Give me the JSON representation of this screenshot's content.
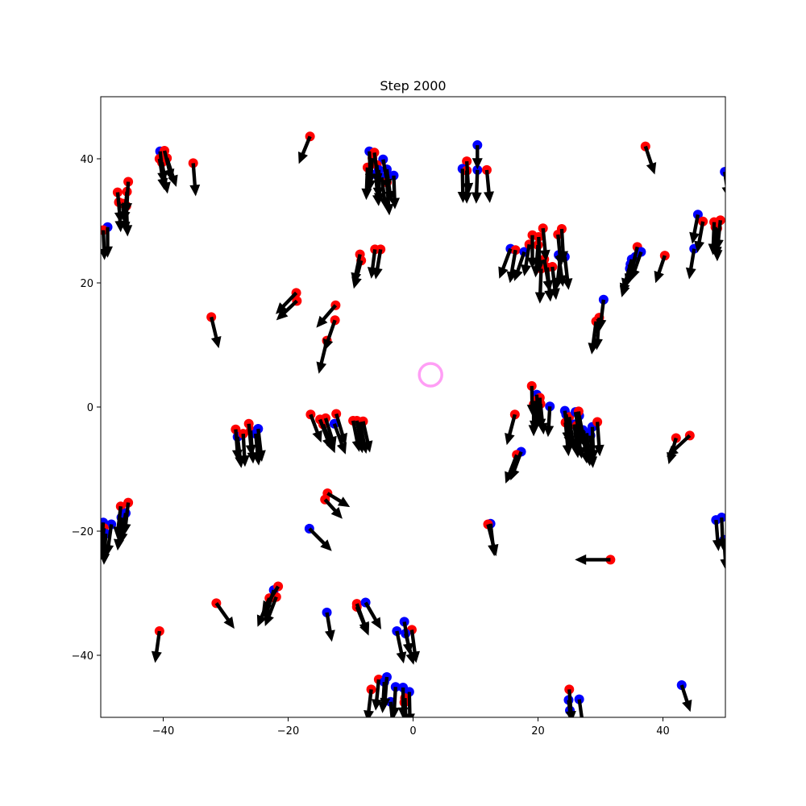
{
  "chart_data": {
    "type": "scatter",
    "title": "Step 2000",
    "xlabel": "",
    "ylabel": "",
    "xlim": [
      -50,
      50
    ],
    "ylim": [
      -50,
      50
    ],
    "xticks": [
      -40,
      -20,
      0,
      20,
      40
    ],
    "yticks": [
      -40,
      -20,
      0,
      20,
      40
    ],
    "xtick_labels": [
      "−40",
      "−20",
      "0",
      "20",
      "40"
    ],
    "ytick_labels": [
      "−40",
      "−20",
      "0",
      "20",
      "40"
    ],
    "grid": false,
    "colors": {
      "red": "#ff0000",
      "blue": "#0000ff",
      "arrow": "#000000",
      "target": "#ff9ef5"
    },
    "target": {
      "x": 2.8,
      "y": 5.2
    },
    "agents": [
      {
        "x": -16.5,
        "y": 43.6,
        "dx": -1.8,
        "dy": -4.4,
        "c": "red"
      },
      {
        "x": 37.2,
        "y": 42.0,
        "dx": 1.5,
        "dy": -4.5,
        "c": "red"
      },
      {
        "x": -35.2,
        "y": 39.3,
        "dx": 0.4,
        "dy": -5.3,
        "c": "red"
      },
      {
        "x": -40.5,
        "y": 41.2,
        "dx": 0.6,
        "dy": -5.2,
        "c": "blue"
      },
      {
        "x": -39.8,
        "y": 41.3,
        "dx": 1.2,
        "dy": -4.8,
        "c": "red"
      },
      {
        "x": -40.6,
        "y": 40.0,
        "dx": 0.8,
        "dy": -5.0,
        "c": "red"
      },
      {
        "x": -39.4,
        "y": 40.1,
        "dx": 1.5,
        "dy": -4.6,
        "c": "red"
      },
      {
        "x": -40.2,
        "y": 39.4,
        "dx": 0.9,
        "dy": -5.0,
        "c": "red"
      },
      {
        "x": -47.3,
        "y": 34.6,
        "dx": 0.5,
        "dy": -5.0,
        "c": "red"
      },
      {
        "x": -45.6,
        "y": 36.3,
        "dx": -0.3,
        "dy": -5.2,
        "c": "red"
      },
      {
        "x": -45.8,
        "y": 34.7,
        "dx": -0.5,
        "dy": -5.0,
        "c": "red"
      },
      {
        "x": -47.1,
        "y": 33.0,
        "dx": 0.3,
        "dy": -4.8,
        "c": "red"
      },
      {
        "x": -46.5,
        "y": 32.8,
        "dx": 0.6,
        "dy": -4.8,
        "c": "red"
      },
      {
        "x": -45.9,
        "y": 32.4,
        "dx": 0.2,
        "dy": -4.9,
        "c": "red"
      },
      {
        "x": -48.9,
        "y": 29.0,
        "dx": 0.0,
        "dy": -4.9,
        "c": "blue"
      },
      {
        "x": -49.6,
        "y": 28.5,
        "dx": 0.2,
        "dy": -4.8,
        "c": "red"
      },
      {
        "x": -7.0,
        "y": 41.2,
        "dx": 0.2,
        "dy": -5.4,
        "c": "blue"
      },
      {
        "x": -6.2,
        "y": 41.0,
        "dx": 0.7,
        "dy": -5.2,
        "c": "red"
      },
      {
        "x": -6.5,
        "y": 40.1,
        "dx": -0.5,
        "dy": -5.3,
        "c": "red"
      },
      {
        "x": -4.8,
        "y": 39.9,
        "dx": 0.9,
        "dy": -5.0,
        "c": "blue"
      },
      {
        "x": -5.8,
        "y": 39.0,
        "dx": 0.3,
        "dy": -5.4,
        "c": "red"
      },
      {
        "x": -7.3,
        "y": 38.6,
        "dx": -0.2,
        "dy": -5.2,
        "c": "red"
      },
      {
        "x": -5.5,
        "y": 38.2,
        "dx": 0.1,
        "dy": -5.5,
        "c": "blue"
      },
      {
        "x": -4.2,
        "y": 38.3,
        "dx": 0.7,
        "dy": -5.3,
        "c": "blue"
      },
      {
        "x": -6.0,
        "y": 37.5,
        "dx": 0.5,
        "dy": -5.1,
        "c": "blue"
      },
      {
        "x": -3.1,
        "y": 37.3,
        "dx": 0.2,
        "dy": -5.4,
        "c": "blue"
      },
      {
        "x": -5.0,
        "y": 37.0,
        "dx": 0.6,
        "dy": -5.0,
        "c": "blue"
      },
      {
        "x": -4.2,
        "y": 36.2,
        "dx": 0.4,
        "dy": -5.3,
        "c": "red"
      },
      {
        "x": 10.3,
        "y": 42.2,
        "dx": 0.0,
        "dy": -3.9,
        "c": "blue"
      },
      {
        "x": 8.6,
        "y": 39.6,
        "dx": 0.3,
        "dy": -5.3,
        "c": "red"
      },
      {
        "x": 7.9,
        "y": 38.4,
        "dx": 0.1,
        "dy": -5.5,
        "c": "blue"
      },
      {
        "x": 8.6,
        "y": 38.1,
        "dx": 0.0,
        "dy": -5.3,
        "c": "red"
      },
      {
        "x": 10.3,
        "y": 38.2,
        "dx": -0.2,
        "dy": -5.4,
        "c": "blue"
      },
      {
        "x": 11.8,
        "y": 38.2,
        "dx": 0.5,
        "dy": -5.3,
        "c": "red"
      },
      {
        "x": -8.5,
        "y": 24.6,
        "dx": -1.0,
        "dy": -4.8,
        "c": "red"
      },
      {
        "x": -8.3,
        "y": 23.6,
        "dx": -1.2,
        "dy": -4.5,
        "c": "red"
      },
      {
        "x": -6.1,
        "y": 25.4,
        "dx": -0.6,
        "dy": -4.7,
        "c": "red"
      },
      {
        "x": -5.2,
        "y": 25.4,
        "dx": -0.8,
        "dy": -4.8,
        "c": "red"
      },
      {
        "x": 15.6,
        "y": 25.5,
        "dx": -1.8,
        "dy": -4.8,
        "c": "blue"
      },
      {
        "x": 16.4,
        "y": 25.3,
        "dx": -0.9,
        "dy": -5.3,
        "c": "red"
      },
      {
        "x": 17.8,
        "y": 25.0,
        "dx": -1.6,
        "dy": -4.7,
        "c": "blue"
      },
      {
        "x": 18.6,
        "y": 26.2,
        "dx": -0.8,
        "dy": -5.1,
        "c": "red"
      },
      {
        "x": 19.1,
        "y": 27.7,
        "dx": 0.0,
        "dy": -5.4,
        "c": "red"
      },
      {
        "x": 20.1,
        "y": 27.4,
        "dx": 0.2,
        "dy": -5.5,
        "c": "red"
      },
      {
        "x": 20.0,
        "y": 26.1,
        "dx": -0.4,
        "dy": -5.2,
        "c": "red"
      },
      {
        "x": 20.8,
        "y": 28.8,
        "dx": 0.5,
        "dy": -5.3,
        "c": "red"
      },
      {
        "x": 21.0,
        "y": 23.8,
        "dx": 0.9,
        "dy": -5.2,
        "c": "red"
      },
      {
        "x": 20.5,
        "y": 22.3,
        "dx": -0.2,
        "dy": -5.6,
        "c": "red"
      },
      {
        "x": 21.5,
        "y": 22.5,
        "dx": 0.5,
        "dy": -5.5,
        "c": "red"
      },
      {
        "x": 22.3,
        "y": 22.6,
        "dx": 0.6,
        "dy": -5.3,
        "c": "red"
      },
      {
        "x": 23.8,
        "y": 28.7,
        "dx": 0.3,
        "dy": -5.4,
        "c": "red"
      },
      {
        "x": 23.2,
        "y": 27.8,
        "dx": 0.5,
        "dy": -5.2,
        "c": "red"
      },
      {
        "x": 23.3,
        "y": 24.5,
        "dx": 0.7,
        "dy": -5.1,
        "c": "blue"
      },
      {
        "x": 24.3,
        "y": 24.2,
        "dx": 0.6,
        "dy": -5.3,
        "c": "blue"
      },
      {
        "x": 23.6,
        "y": 24.3,
        "dx": -0.6,
        "dy": -5.3,
        "c": "blue"
      },
      {
        "x": 35.9,
        "y": 25.8,
        "dx": -1.2,
        "dy": -4.8,
        "c": "red"
      },
      {
        "x": 36.5,
        "y": 25.0,
        "dx": -1.6,
        "dy": -4.6,
        "c": "blue"
      },
      {
        "x": 35.6,
        "y": 24.2,
        "dx": -1.5,
        "dy": -4.6,
        "c": "blue"
      },
      {
        "x": 35.0,
        "y": 23.8,
        "dx": -1.3,
        "dy": -4.9,
        "c": "blue"
      },
      {
        "x": 34.8,
        "y": 23.0,
        "dx": -1.4,
        "dy": -4.9,
        "c": "blue"
      },
      {
        "x": 34.7,
        "y": 22.3,
        "dx": -1.3,
        "dy": -4.6,
        "c": "blue"
      },
      {
        "x": 40.3,
        "y": 24.4,
        "dx": -1.5,
        "dy": -4.4,
        "c": "red"
      },
      {
        "x": 45.6,
        "y": 31.0,
        "dx": -0.9,
        "dy": -4.7,
        "c": "blue"
      },
      {
        "x": 46.4,
        "y": 29.9,
        "dx": -0.9,
        "dy": -5.0,
        "c": "red"
      },
      {
        "x": 45.0,
        "y": 25.5,
        "dx": -0.8,
        "dy": -4.9,
        "c": "blue"
      },
      {
        "x": 48.2,
        "y": 29.8,
        "dx": -0.2,
        "dy": -5.3,
        "c": "red"
      },
      {
        "x": 48.7,
        "y": 28.8,
        "dx": 0.0,
        "dy": -5.3,
        "c": "red"
      },
      {
        "x": 49.2,
        "y": 30.1,
        "dx": -0.5,
        "dy": -4.9,
        "c": "red"
      },
      {
        "x": 48.4,
        "y": 29.0,
        "dx": 0.3,
        "dy": -5.0,
        "c": "red"
      },
      {
        "x": 49.9,
        "y": 37.9,
        "dx": 0.6,
        "dy": -4.2,
        "c": "blue"
      },
      {
        "x": -18.7,
        "y": 18.4,
        "dx": -3.3,
        "dy": -3.4,
        "c": "red"
      },
      {
        "x": -18.6,
        "y": 17.1,
        "dx": -3.3,
        "dy": -3.1,
        "c": "red"
      },
      {
        "x": -12.4,
        "y": 16.4,
        "dx": -3.1,
        "dy": -3.6,
        "c": "red"
      },
      {
        "x": -12.5,
        "y": 14.0,
        "dx": -1.7,
        "dy": -4.9,
        "c": "red"
      },
      {
        "x": -13.8,
        "y": 10.7,
        "dx": -1.3,
        "dy": -5.3,
        "c": "red"
      },
      {
        "x": -32.3,
        "y": 14.5,
        "dx": 1.2,
        "dy": -5.0,
        "c": "red"
      },
      {
        "x": 30.5,
        "y": 17.3,
        "dx": -0.6,
        "dy": -5.0,
        "c": "blue"
      },
      {
        "x": 29.8,
        "y": 14.4,
        "dx": -0.4,
        "dy": -5.2,
        "c": "red"
      },
      {
        "x": 29.3,
        "y": 13.8,
        "dx": -0.7,
        "dy": -5.3,
        "c": "red"
      },
      {
        "x": -28.4,
        "y": -3.6,
        "dx": 0.4,
        "dy": -5.1,
        "c": "red"
      },
      {
        "x": -28.1,
        "y": -4.8,
        "dx": 0.6,
        "dy": -5.0,
        "c": "blue"
      },
      {
        "x": -27.2,
        "y": -4.3,
        "dx": 0.3,
        "dy": -5.3,
        "c": "red"
      },
      {
        "x": -26.3,
        "y": -2.7,
        "dx": 0.5,
        "dy": -5.2,
        "c": "red"
      },
      {
        "x": -26.0,
        "y": -3.8,
        "dx": 0.4,
        "dy": -5.3,
        "c": "red"
      },
      {
        "x": -25.2,
        "y": -4.3,
        "dx": 0.5,
        "dy": -5.1,
        "c": "blue"
      },
      {
        "x": -24.8,
        "y": -3.5,
        "dx": 0.6,
        "dy": -5.3,
        "c": "blue"
      },
      {
        "x": -16.4,
        "y": -1.2,
        "dx": 1.7,
        "dy": -4.5,
        "c": "red"
      },
      {
        "x": -14.9,
        "y": -2.0,
        "dx": 1.8,
        "dy": -4.8,
        "c": "red"
      },
      {
        "x": -14.4,
        "y": -2.8,
        "dx": 1.9,
        "dy": -4.6,
        "c": "red"
      },
      {
        "x": -14.0,
        "y": -1.8,
        "dx": 1.5,
        "dy": -4.8,
        "c": "red"
      },
      {
        "x": -12.6,
        "y": -2.7,
        "dx": 1.8,
        "dy": -4.9,
        "c": "blue"
      },
      {
        "x": -12.3,
        "y": -1.1,
        "dx": 1.5,
        "dy": -5.0,
        "c": "red"
      },
      {
        "x": -9.6,
        "y": -2.2,
        "dx": 1.0,
        "dy": -5.0,
        "c": "red"
      },
      {
        "x": -8.5,
        "y": -2.4,
        "dx": 1.0,
        "dy": -5.1,
        "c": "red"
      },
      {
        "x": -8.0,
        "y": -2.3,
        "dx": 1.1,
        "dy": -5.0,
        "c": "red"
      },
      {
        "x": -9.0,
        "y": -2.2,
        "dx": 0.9,
        "dy": -5.2,
        "c": "red"
      },
      {
        "x": 16.3,
        "y": -1.2,
        "dx": -1.3,
        "dy": -4.9,
        "c": "red"
      },
      {
        "x": 19.0,
        "y": 3.4,
        "dx": 0.1,
        "dy": -4.8,
        "c": "red"
      },
      {
        "x": 19.8,
        "y": 2.0,
        "dx": 0.3,
        "dy": -5.0,
        "c": "blue"
      },
      {
        "x": 20.3,
        "y": 1.5,
        "dx": 0.2,
        "dy": -5.2,
        "c": "red"
      },
      {
        "x": 19.6,
        "y": 1.0,
        "dx": -0.2,
        "dy": -5.0,
        "c": "red"
      },
      {
        "x": 20.4,
        "y": 0.5,
        "dx": 0.5,
        "dy": -4.9,
        "c": "red"
      },
      {
        "x": 19.3,
        "y": 0.4,
        "dx": 0.0,
        "dy": -5.1,
        "c": "red"
      },
      {
        "x": 21.9,
        "y": 0.1,
        "dx": -0.3,
        "dy": -4.9,
        "c": "blue"
      },
      {
        "x": 24.3,
        "y": -0.6,
        "dx": 0.6,
        "dy": -5.2,
        "c": "blue"
      },
      {
        "x": 24.5,
        "y": -1.2,
        "dx": 0.7,
        "dy": -5.3,
        "c": "blue"
      },
      {
        "x": 25.0,
        "y": -1.6,
        "dx": 0.8,
        "dy": -5.5,
        "c": "red"
      },
      {
        "x": 24.4,
        "y": -2.5,
        "dx": 0.5,
        "dy": -5.4,
        "c": "red"
      },
      {
        "x": 26.0,
        "y": -0.8,
        "dx": 0.9,
        "dy": -5.4,
        "c": "blue"
      },
      {
        "x": 26.6,
        "y": -1.4,
        "dx": 1.0,
        "dy": -5.3,
        "c": "blue"
      },
      {
        "x": 25.8,
        "y": -2.8,
        "dx": 0.6,
        "dy": -5.4,
        "c": "blue"
      },
      {
        "x": 26.5,
        "y": -0.7,
        "dx": 0.5,
        "dy": -5.1,
        "c": "red"
      },
      {
        "x": 26.2,
        "y": -3.0,
        "dx": 0.8,
        "dy": -5.3,
        "c": "red"
      },
      {
        "x": 27.2,
        "y": -3.7,
        "dx": 0.6,
        "dy": -5.4,
        "c": "blue"
      },
      {
        "x": 27.8,
        "y": -4.2,
        "dx": 0.5,
        "dy": -5.3,
        "c": "blue"
      },
      {
        "x": 28.7,
        "y": -3.2,
        "dx": 0.2,
        "dy": -5.5,
        "c": "blue"
      },
      {
        "x": 28.4,
        "y": -4.6,
        "dx": 0.4,
        "dy": -5.2,
        "c": "blue"
      },
      {
        "x": 29.5,
        "y": -2.4,
        "dx": 0.4,
        "dy": -5.5,
        "c": "red"
      },
      {
        "x": 17.3,
        "y": -7.2,
        "dx": -1.7,
        "dy": -4.6,
        "c": "blue"
      },
      {
        "x": 16.6,
        "y": -7.7,
        "dx": -1.8,
        "dy": -4.6,
        "c": "red"
      },
      {
        "x": 42.1,
        "y": -5.0,
        "dx": -1.2,
        "dy": -4.2,
        "c": "red"
      },
      {
        "x": 44.3,
        "y": -4.6,
        "dx": -3.7,
        "dy": -3.4,
        "c": "red"
      },
      {
        "x": -13.7,
        "y": -13.9,
        "dx": 3.6,
        "dy": -2.2,
        "c": "red"
      },
      {
        "x": -14.1,
        "y": -14.9,
        "dx": 2.8,
        "dy": -3.1,
        "c": "red"
      },
      {
        "x": -16.6,
        "y": -19.6,
        "dx": 3.6,
        "dy": -3.6,
        "c": "blue"
      },
      {
        "x": 12.4,
        "y": -18.8,
        "dx": 0.6,
        "dy": -5.2,
        "c": "blue"
      },
      {
        "x": 12.0,
        "y": -18.9,
        "dx": 1.3,
        "dy": -5.1,
        "c": "red"
      },
      {
        "x": 31.6,
        "y": -24.6,
        "dx": -5.7,
        "dy": 0.0,
        "c": "red"
      },
      {
        "x": -46.8,
        "y": -16.0,
        "dx": -0.6,
        "dy": -5.1,
        "c": "red"
      },
      {
        "x": -45.6,
        "y": -15.4,
        "dx": -0.6,
        "dy": -5.2,
        "c": "red"
      },
      {
        "x": -46.0,
        "y": -17.1,
        "dx": -0.8,
        "dy": -5.0,
        "c": "blue"
      },
      {
        "x": -46.7,
        "y": -17.8,
        "dx": -0.6,
        "dy": -5.3,
        "c": "blue"
      },
      {
        "x": -48.3,
        "y": -18.9,
        "dx": -0.7,
        "dy": -5.1,
        "c": "blue"
      },
      {
        "x": -49.6,
        "y": -18.6,
        "dx": -0.4,
        "dy": -5.4,
        "c": "blue"
      },
      {
        "x": -49.5,
        "y": -19.5,
        "dx": -0.5,
        "dy": -5.2,
        "c": "red"
      },
      {
        "x": -49.2,
        "y": -20.4,
        "dx": -0.3,
        "dy": -5.0,
        "c": "blue"
      },
      {
        "x": 48.5,
        "y": -18.2,
        "dx": 0.4,
        "dy": -5.0,
        "c": "blue"
      },
      {
        "x": 49.4,
        "y": -17.8,
        "dx": 0.2,
        "dy": -5.2,
        "c": "blue"
      },
      {
        "x": 49.8,
        "y": -21.4,
        "dx": 0.3,
        "dy": -4.9,
        "c": "blue"
      },
      {
        "x": -31.5,
        "y": -31.6,
        "dx": 2.9,
        "dy": -4.1,
        "c": "red"
      },
      {
        "x": -23.0,
        "y": -30.8,
        "dx": -1.9,
        "dy": -4.6,
        "c": "red"
      },
      {
        "x": -22.3,
        "y": -29.5,
        "dx": -1.5,
        "dy": -4.8,
        "c": "blue"
      },
      {
        "x": -21.6,
        "y": -28.9,
        "dx": -2.6,
        "dy": -4.2,
        "c": "red"
      },
      {
        "x": -21.9,
        "y": -30.6,
        "dx": -1.8,
        "dy": -4.7,
        "c": "red"
      },
      {
        "x": -13.8,
        "y": -33.1,
        "dx": 0.8,
        "dy": -4.7,
        "c": "blue"
      },
      {
        "x": -9.0,
        "y": -31.7,
        "dx": 1.8,
        "dy": -4.8,
        "c": "red"
      },
      {
        "x": -9.0,
        "y": -32.2,
        "dx": 1.9,
        "dy": -4.6,
        "c": "red"
      },
      {
        "x": -7.6,
        "y": -31.5,
        "dx": 2.5,
        "dy": -4.3,
        "c": "blue"
      },
      {
        "x": -40.6,
        "y": -36.1,
        "dx": -0.7,
        "dy": -5.1,
        "c": "red"
      },
      {
        "x": -2.6,
        "y": -36.1,
        "dx": 1.1,
        "dy": -5.2,
        "c": "blue"
      },
      {
        "x": -1.4,
        "y": -34.6,
        "dx": 0.9,
        "dy": -5.3,
        "c": "blue"
      },
      {
        "x": -0.2,
        "y": -35.9,
        "dx": 0.7,
        "dy": -5.3,
        "c": "red"
      },
      {
        "x": -1.2,
        "y": -36.5,
        "dx": 1.3,
        "dy": -5.0,
        "c": "blue"
      },
      {
        "x": -5.5,
        "y": -43.9,
        "dx": -0.5,
        "dy": -5.0,
        "c": "red"
      },
      {
        "x": -4.2,
        "y": -43.5,
        "dx": -0.4,
        "dy": -5.2,
        "c": "blue"
      },
      {
        "x": -4.6,
        "y": -44.3,
        "dx": -0.3,
        "dy": -5.0,
        "c": "blue"
      },
      {
        "x": -6.7,
        "y": -45.5,
        "dx": -0.6,
        "dy": -5.2,
        "c": "red"
      },
      {
        "x": -2.8,
        "y": -45.1,
        "dx": -0.3,
        "dy": -5.1,
        "c": "blue"
      },
      {
        "x": -1.6,
        "y": -45.2,
        "dx": 0.0,
        "dy": -5.0,
        "c": "blue"
      },
      {
        "x": -0.6,
        "y": -45.9,
        "dx": 0.1,
        "dy": -5.3,
        "c": "blue"
      },
      {
        "x": -1.3,
        "y": -46.9,
        "dx": 0.2,
        "dy": -5.0,
        "c": "red"
      },
      {
        "x": -1.4,
        "y": -47.6,
        "dx": 0.3,
        "dy": -5.2,
        "c": "red"
      },
      {
        "x": -3.6,
        "y": -47.5,
        "dx": 0.5,
        "dy": -4.8,
        "c": "blue"
      },
      {
        "x": 25.0,
        "y": -45.5,
        "dx": 0.4,
        "dy": -5.3,
        "c": "red"
      },
      {
        "x": 24.9,
        "y": -47.2,
        "dx": 0.6,
        "dy": -5.1,
        "c": "blue"
      },
      {
        "x": 26.6,
        "y": -47.1,
        "dx": 0.7,
        "dy": -5.0,
        "c": "blue"
      },
      {
        "x": 25.1,
        "y": -48.9,
        "dx": 0.9,
        "dy": -4.8,
        "c": "blue"
      },
      {
        "x": 43.0,
        "y": -44.8,
        "dx": 1.4,
        "dy": -4.3,
        "c": "blue"
      }
    ]
  }
}
